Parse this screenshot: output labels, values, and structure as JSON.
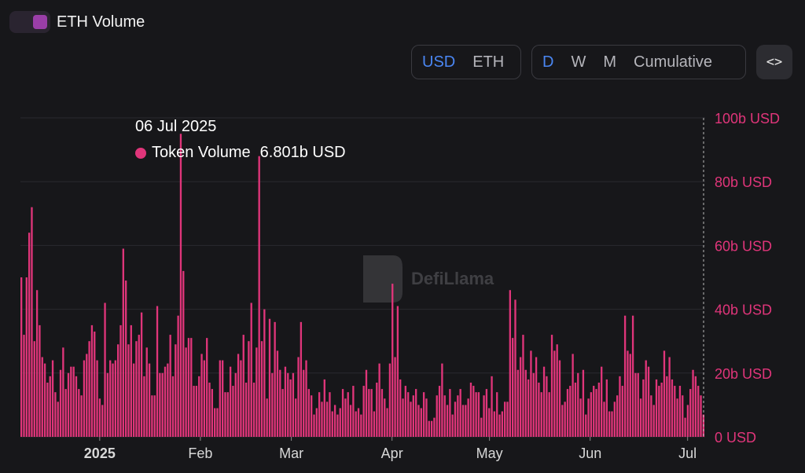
{
  "legend": {
    "label": "ETH Volume",
    "color": "#9a3ea8"
  },
  "currency_toggle": {
    "options": [
      "USD",
      "ETH"
    ],
    "selected": "USD"
  },
  "period_toggle": {
    "options": [
      "D",
      "W",
      "M",
      "Cumulative"
    ],
    "selected": "D"
  },
  "embed_button": {
    "icon": "code-icon",
    "label": "<>"
  },
  "tooltip": {
    "date": "06 Jul 2025",
    "series": "Token Volume",
    "value": "6.801b USD"
  },
  "watermark": "DefiLlama",
  "colors": {
    "bar": "#e0357a",
    "axis_label": "#e0357a",
    "background": "#17171a"
  },
  "chart_data": {
    "type": "bar",
    "title": "",
    "series": [
      {
        "name": "Token Volume"
      }
    ],
    "x_start": "2024-12-08",
    "x_end": "2025-07-06",
    "xticks": [
      "2025",
      "Feb",
      "Mar",
      "Apr",
      "May",
      "Jun",
      "Jul"
    ],
    "ylim": [
      0,
      100
    ],
    "yticks": [
      "0 USD",
      "20b USD",
      "40b USD",
      "60b USD",
      "80b USD",
      "100b USD"
    ],
    "unit": "b USD",
    "grid": true,
    "values": [
      50,
      32,
      50,
      64,
      72,
      30,
      46,
      35,
      25,
      23,
      17,
      19,
      24,
      14,
      11,
      21,
      28,
      15,
      20,
      22,
      22,
      19,
      15,
      13,
      24,
      26,
      30,
      35,
      33,
      24,
      12,
      10,
      42,
      20,
      24,
      23,
      24,
      29,
      35,
      59,
      49,
      29,
      35,
      23,
      30,
      32,
      39,
      19,
      28,
      23,
      13,
      13,
      41,
      20,
      20,
      22,
      23,
      32,
      19,
      29,
      38,
      95,
      52,
      28,
      31,
      31,
      16,
      16,
      19,
      26,
      24,
      31,
      17,
      15,
      9,
      9,
      24,
      24,
      14,
      14,
      22,
      16,
      20,
      26,
      24,
      32,
      17,
      30,
      42,
      17,
      28,
      88,
      30,
      40,
      12,
      37,
      20,
      36,
      27,
      21,
      15,
      22,
      20,
      18,
      20,
      12,
      25,
      36,
      21,
      24,
      15,
      13,
      7,
      9,
      14,
      11,
      18,
      11,
      14,
      8,
      10,
      7,
      9,
      15,
      12,
      14,
      10,
      16,
      8,
      9,
      7,
      16,
      21,
      15,
      15,
      8,
      17,
      23,
      15,
      12,
      9,
      23,
      48,
      25,
      41,
      18,
      12,
      16,
      14,
      11,
      13,
      15,
      10,
      9,
      14,
      12,
      5,
      5,
      6,
      13,
      16,
      23,
      13,
      10,
      15,
      7,
      11,
      13,
      15,
      10,
      10,
      12,
      17,
      16,
      14,
      14,
      6,
      13,
      15,
      9,
      19,
      8,
      14,
      7,
      8,
      11,
      11,
      46,
      31,
      43,
      21,
      25,
      32,
      21,
      18,
      27,
      20,
      25,
      17,
      14,
      22,
      19,
      14,
      32,
      27,
      29,
      24,
      10,
      11,
      15,
      16,
      26,
      17,
      20,
      12,
      21,
      7,
      12,
      14,
      16,
      15,
      17,
      22,
      11,
      18,
      8,
      8,
      11,
      13,
      19,
      16,
      38,
      27,
      26,
      38,
      20,
      20,
      12,
      18,
      24,
      22,
      13,
      10,
      18,
      16,
      17,
      27,
      19,
      25,
      18,
      16,
      12,
      16,
      13,
      6,
      10,
      15,
      21,
      19,
      16,
      13,
      7
    ]
  }
}
